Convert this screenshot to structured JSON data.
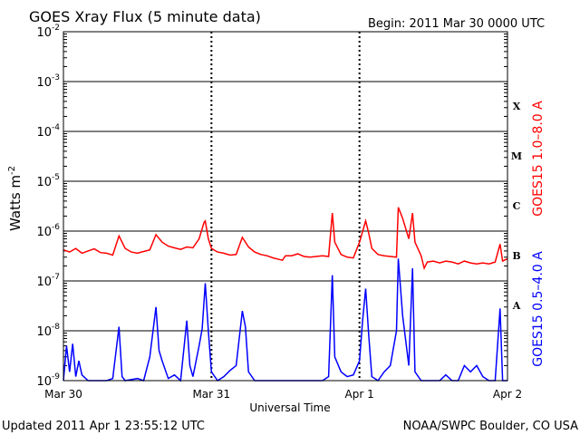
{
  "header": {
    "title": "GOES Xray Flux (5 minute data)",
    "begin": "Begin:  2011 Mar 30 0000 UTC"
  },
  "footer": {
    "updated": "Updated 2011 Apr  1 23:55:12 UTC",
    "credit": "NOAA/SWPC Boulder, CO USA"
  },
  "chart_data": {
    "type": "line",
    "title": "GOES Xray Flux (5 minute data)",
    "xlabel": "Universal Time",
    "ylabel_base": "Watts m",
    "ylabel_exp": "-2",
    "yscale": "log",
    "ylim": [
      1e-09,
      0.01
    ],
    "xlim": [
      0,
      72
    ],
    "x_units": "hours since 2011 Mar 30 0000 UTC",
    "x_ticks": [
      {
        "x": 0,
        "label": "Mar 30"
      },
      {
        "x": 24,
        "label": "Mar 31"
      },
      {
        "x": 48,
        "label": "Apr 1"
      },
      {
        "x": 72,
        "label": "Apr 2"
      }
    ],
    "y_ticks": [
      {
        "value": 1e-09,
        "base": "10",
        "exp": "-9"
      },
      {
        "value": 1e-08,
        "base": "10",
        "exp": "-8"
      },
      {
        "value": 1e-07,
        "base": "10",
        "exp": "-7"
      },
      {
        "value": 1e-06,
        "base": "10",
        "exp": "-6"
      },
      {
        "value": 1e-05,
        "base": "10",
        "exp": "-5"
      },
      {
        "value": 0.0001,
        "base": "10",
        "exp": "-4"
      },
      {
        "value": 0.001,
        "base": "10",
        "exp": "-3"
      },
      {
        "value": 0.01,
        "base": "10",
        "exp": "-2"
      }
    ],
    "flare_classes": [
      {
        "label": "A",
        "value": 3.2e-08
      },
      {
        "label": "B",
        "value": 3.2e-07
      },
      {
        "label": "C",
        "value": 3.2e-06
      },
      {
        "label": "M",
        "value": 3.2e-05
      },
      {
        "label": "X",
        "value": 0.00032
      }
    ],
    "grid": true,
    "series": [
      {
        "name": "GOES15 1.0–8.0 A",
        "color": "#ff0000",
        "points": [
          [
            0,
            4.2e-07
          ],
          [
            1,
            3.8e-07
          ],
          [
            2,
            4.5e-07
          ],
          [
            3,
            3.6e-07
          ],
          [
            4,
            4e-07
          ],
          [
            5,
            4.4e-07
          ],
          [
            6,
            3.7e-07
          ],
          [
            7,
            3.6e-07
          ],
          [
            8,
            3.3e-07
          ],
          [
            9,
            8e-07
          ],
          [
            10,
            4.5e-07
          ],
          [
            11,
            3.8e-07
          ],
          [
            12,
            3.6e-07
          ],
          [
            13,
            3.9e-07
          ],
          [
            14,
            4.2e-07
          ],
          [
            15,
            8.5e-07
          ],
          [
            16,
            6e-07
          ],
          [
            17,
            5e-07
          ],
          [
            18,
            4.6e-07
          ],
          [
            19,
            4.3e-07
          ],
          [
            20,
            4.8e-07
          ],
          [
            21,
            4.6e-07
          ],
          [
            22,
            7e-07
          ],
          [
            22.8,
            1.5e-06
          ],
          [
            23,
            1.6e-06
          ],
          [
            23.5,
            7e-07
          ],
          [
            24,
            4.5e-07
          ],
          [
            25,
            3.8e-07
          ],
          [
            26,
            3.6e-07
          ],
          [
            27,
            3.3e-07
          ],
          [
            28,
            3.4e-07
          ],
          [
            29,
            7.5e-07
          ],
          [
            30,
            4.8e-07
          ],
          [
            31,
            3.8e-07
          ],
          [
            32,
            3.4e-07
          ],
          [
            33,
            3.2e-07
          ],
          [
            34,
            2.9e-07
          ],
          [
            35,
            2.7e-07
          ],
          [
            35.5,
            2.6e-07
          ],
          [
            36,
            3.2e-07
          ],
          [
            37,
            3.2e-07
          ],
          [
            38,
            3.5e-07
          ],
          [
            39,
            3.1e-07
          ],
          [
            40,
            3e-07
          ],
          [
            41,
            3.1e-07
          ],
          [
            42,
            3.2e-07
          ],
          [
            43,
            3.1e-07
          ],
          [
            43.6,
            2.3e-06
          ],
          [
            44,
            6e-07
          ],
          [
            45,
            3.4e-07
          ],
          [
            46,
            3e-07
          ],
          [
            47,
            2.9e-07
          ],
          [
            48,
            6e-07
          ],
          [
            49,
            1.6e-06
          ],
          [
            49.5,
            9e-07
          ],
          [
            50,
            4.5e-07
          ],
          [
            51,
            3.4e-07
          ],
          [
            52,
            3.2e-07
          ],
          [
            53,
            3.1e-07
          ],
          [
            54,
            3e-07
          ],
          [
            54.3,
            3e-06
          ],
          [
            55,
            1.8e-06
          ],
          [
            56,
            7e-07
          ],
          [
            56.6,
            2.3e-06
          ],
          [
            57,
            6e-07
          ],
          [
            58,
            3.2e-07
          ],
          [
            58.5,
            1.8e-07
          ],
          [
            59,
            2.4e-07
          ],
          [
            60,
            2.5e-07
          ],
          [
            61,
            2.3e-07
          ],
          [
            62,
            2.5e-07
          ],
          [
            63,
            2.4e-07
          ],
          [
            64,
            2.2e-07
          ],
          [
            65,
            2.5e-07
          ],
          [
            66,
            2.3e-07
          ],
          [
            67,
            2.2e-07
          ],
          [
            68,
            2.3e-07
          ],
          [
            69,
            2.2e-07
          ],
          [
            70,
            2.4e-07
          ],
          [
            70.8,
            5.5e-07
          ],
          [
            71.2,
            2.5e-07
          ],
          [
            72,
            2.8e-07
          ]
        ]
      },
      {
        "name": "GOES15 0.5–4.0 A",
        "color": "#0000ff",
        "points": [
          [
            0,
            1e-09
          ],
          [
            0.5,
            5e-09
          ],
          [
            1,
            1.5e-09
          ],
          [
            1.5,
            5.5e-09
          ],
          [
            2,
            1.2e-09
          ],
          [
            2.5,
            2.5e-09
          ],
          [
            3,
            1.3e-09
          ],
          [
            4,
            1e-09
          ],
          [
            5,
            1e-09
          ],
          [
            6,
            1e-09
          ],
          [
            7,
            1e-09
          ],
          [
            8,
            1.1e-09
          ],
          [
            9,
            1.2e-08
          ],
          [
            9.5,
            1.2e-09
          ],
          [
            10,
            1e-09
          ],
          [
            12,
            1.1e-09
          ],
          [
            13,
            1e-09
          ],
          [
            14,
            3e-09
          ],
          [
            15,
            3e-08
          ],
          [
            15.5,
            4e-09
          ],
          [
            16,
            2.5e-09
          ],
          [
            17,
            1.1e-09
          ],
          [
            18,
            1.3e-09
          ],
          [
            19,
            1e-09
          ],
          [
            20,
            1.6e-08
          ],
          [
            20.5,
            2e-09
          ],
          [
            21,
            1.2e-09
          ],
          [
            22,
            5e-09
          ],
          [
            22.5,
            1.1e-08
          ],
          [
            23,
            9e-08
          ],
          [
            23.5,
            1e-08
          ],
          [
            24,
            1.5e-09
          ],
          [
            25,
            1e-09
          ],
          [
            26,
            1.2e-09
          ],
          [
            27,
            1.6e-09
          ],
          [
            28,
            2e-09
          ],
          [
            29,
            2.5e-08
          ],
          [
            29.5,
            1.2e-08
          ],
          [
            30,
            1.5e-09
          ],
          [
            31,
            1e-09
          ],
          [
            32,
            1e-09
          ],
          [
            33,
            1e-09
          ],
          [
            34,
            1e-09
          ],
          [
            35,
            1e-09
          ],
          [
            36,
            1e-09
          ],
          [
            37,
            1e-09
          ],
          [
            38,
            1e-09
          ],
          [
            39,
            1e-09
          ],
          [
            40,
            1e-09
          ],
          [
            41,
            1e-09
          ],
          [
            42,
            1e-09
          ],
          [
            43,
            1.2e-09
          ],
          [
            43.6,
            1.3e-07
          ],
          [
            44,
            3e-09
          ],
          [
            45,
            1.5e-09
          ],
          [
            46,
            1.2e-09
          ],
          [
            47,
            1.3e-09
          ],
          [
            48,
            2.5e-09
          ],
          [
            48.5,
            1.6e-08
          ],
          [
            49,
            7e-08
          ],
          [
            49.5,
            8e-09
          ],
          [
            50,
            1.2e-09
          ],
          [
            51,
            1e-09
          ],
          [
            52,
            1.5e-09
          ],
          [
            53,
            2e-09
          ],
          [
            54,
            1e-08
          ],
          [
            54.3,
            2.8e-07
          ],
          [
            55,
            2e-08
          ],
          [
            56,
            2e-09
          ],
          [
            56.6,
            1.8e-07
          ],
          [
            57,
            1.5e-09
          ],
          [
            58,
            1e-09
          ],
          [
            59,
            1e-09
          ],
          [
            60,
            1e-09
          ],
          [
            61,
            1e-09
          ],
          [
            62,
            1.3e-09
          ],
          [
            63,
            1e-09
          ],
          [
            64,
            1e-09
          ],
          [
            65,
            2e-09
          ],
          [
            66,
            1.5e-09
          ],
          [
            67,
            2e-09
          ],
          [
            68,
            1.2e-09
          ],
          [
            69,
            1e-09
          ],
          [
            70,
            1e-09
          ],
          [
            70.8,
            2.8e-08
          ],
          [
            71.2,
            1e-09
          ],
          [
            72,
            1e-09
          ]
        ]
      }
    ]
  }
}
